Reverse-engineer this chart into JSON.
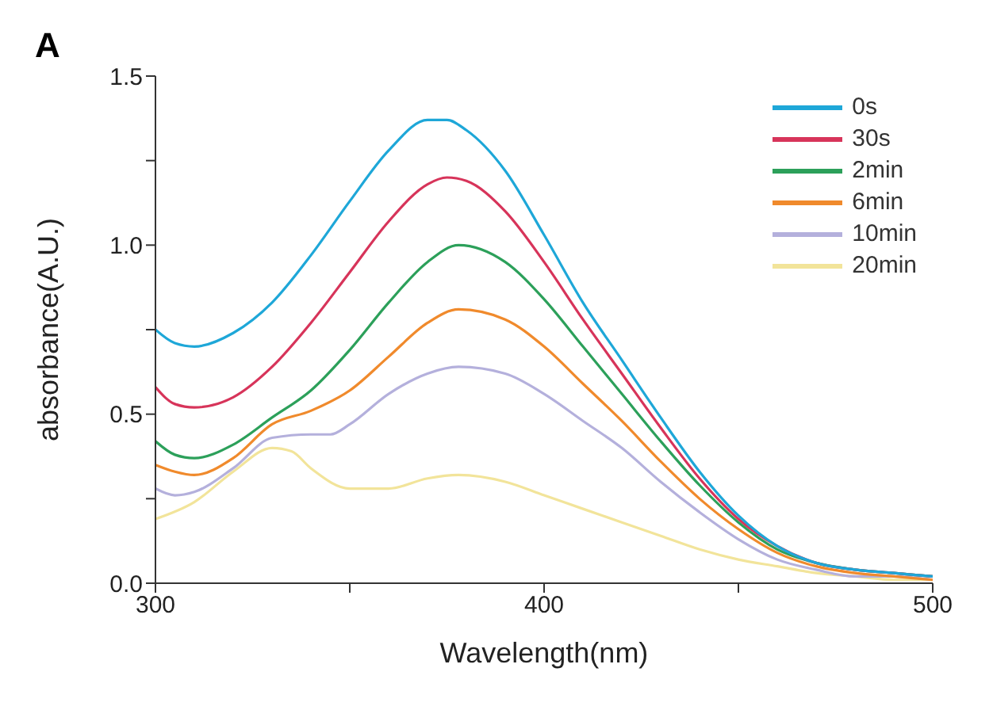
{
  "chart_data": {
    "type": "line",
    "xlabel": "Wavelength(nm)",
    "ylabel": "absorbance(A.U.)",
    "annotations": [
      "A"
    ],
    "xlim": [
      300,
      500
    ],
    "xticks": [
      300,
      {
        "value": 350,
        "label": null
      },
      400,
      {
        "value": 450,
        "label": null
      },
      500
    ],
    "ylim": [
      0,
      1.5
    ],
    "yticks": [
      {
        "value": 0,
        "label": "0.0"
      },
      {
        "value": 0.25,
        "label": null
      },
      {
        "value": 0.5,
        "label": "0.5"
      },
      {
        "value": 0.75,
        "label": null
      },
      {
        "value": 1,
        "label": "1.0"
      },
      {
        "value": 1.25,
        "label": null
      },
      {
        "value": 1.5,
        "label": "1.5"
      }
    ],
    "grid": false,
    "legend": "top right",
    "marker": "none",
    "line_style": "solid",
    "series": [
      {
        "name": "0s",
        "color": "#1ea7d8",
        "x": [
          300,
          305,
          310,
          320,
          330,
          340,
          350,
          360,
          370,
          375,
          380,
          390,
          400,
          410,
          420,
          430,
          440,
          450,
          460,
          470,
          480,
          490,
          500
        ],
        "values": [
          0.75,
          0.71,
          0.7,
          0.74,
          0.83,
          0.97,
          1.13,
          1.28,
          1.37,
          1.37,
          1.34,
          1.22,
          1.03,
          0.83,
          0.66,
          0.49,
          0.33,
          0.2,
          0.11,
          0.06,
          0.04,
          0.03,
          0.02
        ]
      },
      {
        "name": "30s",
        "color": "#d7345a",
        "x": [
          300,
          305,
          310,
          320,
          330,
          340,
          350,
          360,
          370,
          375,
          380,
          390,
          400,
          410,
          420,
          430,
          440,
          450,
          460,
          470,
          480,
          490,
          500
        ],
        "values": [
          0.58,
          0.53,
          0.52,
          0.55,
          0.64,
          0.77,
          0.92,
          1.07,
          1.18,
          1.2,
          1.19,
          1.1,
          0.95,
          0.78,
          0.62,
          0.46,
          0.31,
          0.19,
          0.11,
          0.06,
          0.04,
          0.03,
          0.02
        ]
      },
      {
        "name": "2min",
        "color": "#2ca05a",
        "x": [
          300,
          305,
          310,
          320,
          330,
          340,
          350,
          360,
          370,
          378,
          390,
          400,
          410,
          420,
          430,
          440,
          450,
          460,
          470,
          480,
          490,
          500
        ],
        "values": [
          0.42,
          0.38,
          0.37,
          0.41,
          0.49,
          0.57,
          0.69,
          0.83,
          0.95,
          1.0,
          0.95,
          0.84,
          0.7,
          0.56,
          0.42,
          0.29,
          0.18,
          0.1,
          0.06,
          0.04,
          0.03,
          0.02
        ]
      },
      {
        "name": "6min",
        "color": "#f08a2c",
        "x": [
          300,
          305,
          310,
          320,
          330,
          340,
          350,
          360,
          370,
          378,
          390,
          400,
          410,
          420,
          430,
          440,
          450,
          460,
          470,
          480,
          490,
          500
        ],
        "values": [
          0.35,
          0.33,
          0.32,
          0.37,
          0.47,
          0.51,
          0.57,
          0.67,
          0.77,
          0.81,
          0.78,
          0.7,
          0.59,
          0.48,
          0.36,
          0.25,
          0.16,
          0.09,
          0.05,
          0.03,
          0.02,
          0.01
        ]
      },
      {
        "name": "10min",
        "color": "#b4b0dc",
        "x": [
          300,
          305,
          310,
          320,
          330,
          340,
          345,
          350,
          360,
          370,
          378,
          390,
          400,
          410,
          420,
          430,
          440,
          450,
          460,
          470,
          480,
          490,
          500
        ],
        "values": [
          0.28,
          0.26,
          0.27,
          0.34,
          0.43,
          0.44,
          0.44,
          0.47,
          0.56,
          0.62,
          0.64,
          0.62,
          0.56,
          0.48,
          0.4,
          0.3,
          0.21,
          0.13,
          0.07,
          0.04,
          0.02,
          0.02,
          0.01
        ]
      },
      {
        "name": "20min",
        "color": "#f2e49a",
        "x": [
          300,
          310,
          320,
          330,
          335,
          340,
          350,
          360,
          370,
          378,
          390,
          400,
          410,
          420,
          430,
          440,
          450,
          460,
          470,
          480,
          490,
          500
        ],
        "values": [
          0.19,
          0.24,
          0.33,
          0.4,
          0.39,
          0.34,
          0.28,
          0.28,
          0.31,
          0.32,
          0.3,
          0.26,
          0.22,
          0.18,
          0.14,
          0.1,
          0.07,
          0.05,
          0.03,
          0.02,
          0.01,
          0.01
        ]
      }
    ]
  }
}
